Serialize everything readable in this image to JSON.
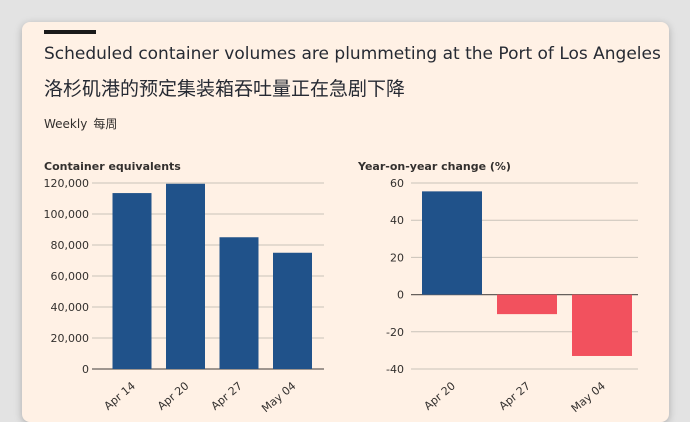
{
  "header": {
    "title_en": "Scheduled container volumes are plummeting at the Port of Los Angeles",
    "title_zh": "洛杉矶港的预定集装箱吞吐量正在急剧下降",
    "frequency_en": "Weekly",
    "frequency_zh": "每周"
  },
  "colors": {
    "bar_blue": "#20528a",
    "bar_red": "#f2515e",
    "gridline": "#c9c2b9",
    "background": "#fff1e5"
  },
  "chart_data": [
    {
      "type": "bar",
      "ylabel": "Container equivalents",
      "categories": [
        "Apr 14",
        "Apr 20",
        "Apr 27",
        "May 04"
      ],
      "values": [
        113500,
        119500,
        85000,
        75000
      ],
      "ylim": [
        0,
        120000
      ],
      "yticks": [
        0,
        20000,
        40000,
        60000,
        80000,
        100000,
        120000
      ],
      "ytick_labels": [
        "0",
        "20,000",
        "40,000",
        "60,000",
        "80,000",
        "100,000",
        "120,000"
      ],
      "grid": true
    },
    {
      "type": "bar",
      "ylabel": "Year-on-year change (%)",
      "categories": [
        "Apr 20",
        "Apr 27",
        "May 04"
      ],
      "values": [
        55.5,
        -10.5,
        -33
      ],
      "ylim": [
        -40,
        60
      ],
      "yticks": [
        -40,
        -20,
        0,
        20,
        40,
        60
      ],
      "ytick_labels": [
        "-40",
        "-20",
        "0",
        "20",
        "40",
        "60"
      ],
      "grid": true
    }
  ]
}
